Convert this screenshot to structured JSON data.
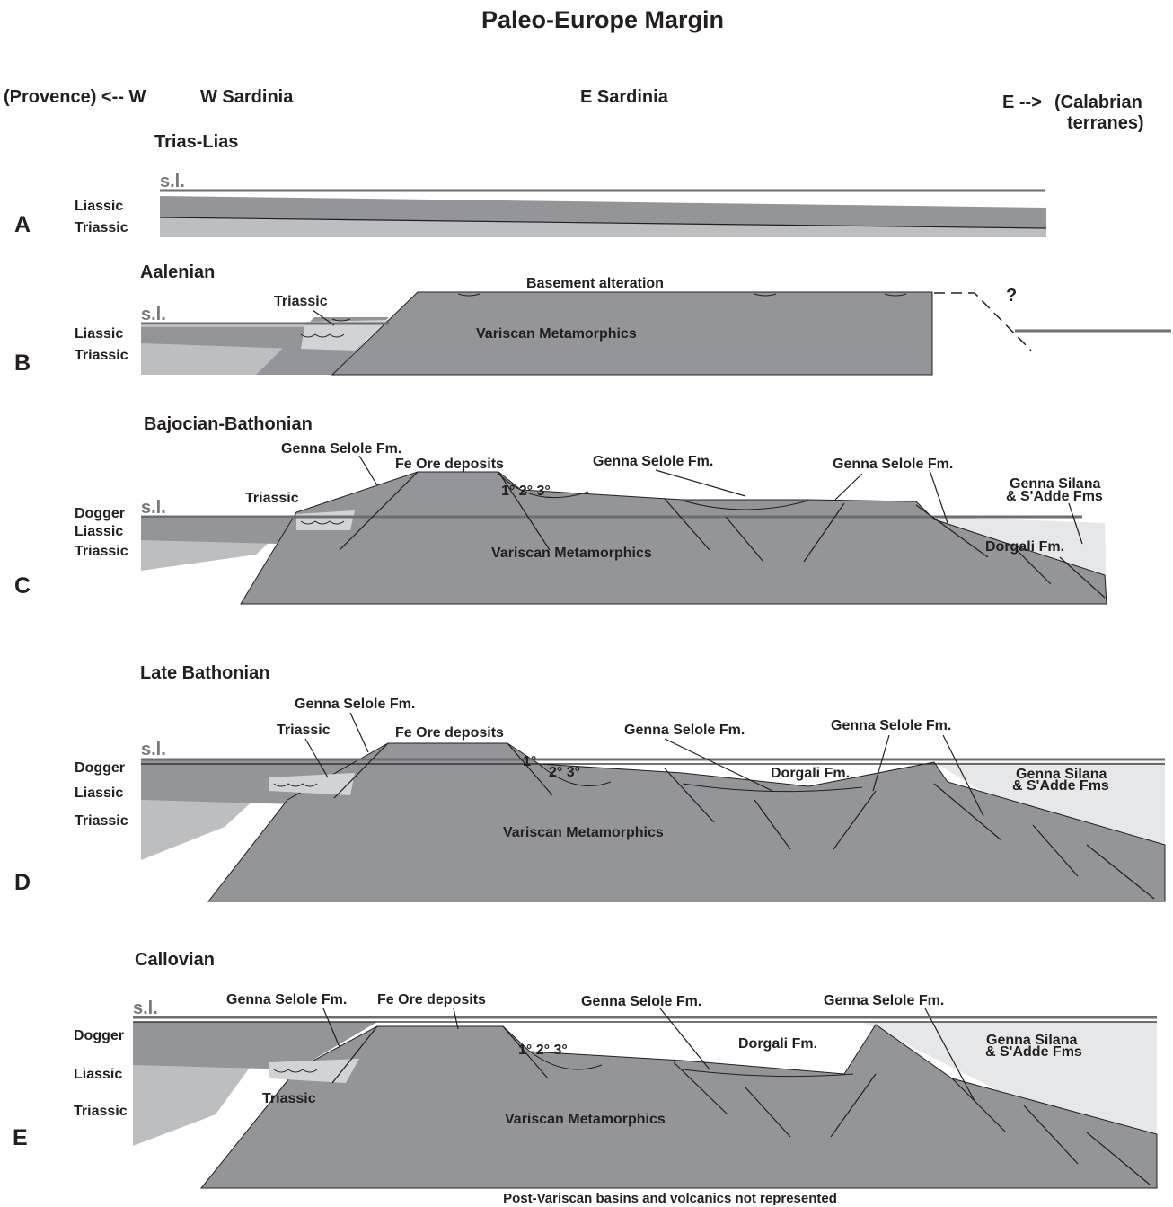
{
  "title": "Paleo-Europe Margin",
  "header": {
    "west": "(Provence) <-- W",
    "w_sardinia": "W Sardinia",
    "e_sardinia": "E Sardinia",
    "east": "E -->",
    "calabrian_1": "(Calabrian",
    "calabrian_2": "terranes)"
  },
  "panels": {
    "A": {
      "letter": "A",
      "stage": "Trias-Lias",
      "sl": "s.l.",
      "units": [
        "Liassic",
        "Triassic"
      ]
    },
    "B": {
      "letter": "B",
      "stage": "Aalenian",
      "sl": "s.l.",
      "units": [
        "Liassic",
        "Triassic"
      ],
      "triassic": "Triassic",
      "basement_alteration": "Basement  alteration",
      "variscan": "Variscan Metamorphics",
      "question": "?"
    },
    "C": {
      "letter": "C",
      "stage": "Bajocian-Bathonian",
      "sl": "s.l.",
      "units": [
        "Dogger",
        "Liassic",
        "Triassic"
      ],
      "genna_selole_1": "Genna Selole Fm.",
      "fe_ore": "Fe Ore deposits",
      "genna_selole_2": "Genna Selole Fm.",
      "genna_selole_3": "Genna Selole Fm.",
      "genna_silana_1": "Genna Silana",
      "genna_silana_2": "& S'Adde Fms",
      "triassic": "Triassic",
      "orders": "1° 2° 3°",
      "variscan": "Variscan Metamorphics",
      "dorgali": "Dorgali Fm."
    },
    "D": {
      "letter": "D",
      "stage": "Late Bathonian",
      "sl": "s.l.",
      "units": [
        "Dogger",
        "Liassic",
        "Triassic"
      ],
      "genna_selole_1": "Genna Selole Fm.",
      "triassic": "Triassic",
      "fe_ore": "Fe Ore deposits",
      "genna_selole_2": "Genna Selole Fm.",
      "genna_selole_3": "Genna Selole Fm.",
      "order_1": "1°",
      "order_23": "2° 3°",
      "dorgali": "Dorgali Fm.",
      "genna_silana_1": "Genna Silana",
      "genna_silana_2": "& S'Adde Fms",
      "variscan": "Variscan Metamorphics"
    },
    "E": {
      "letter": "E",
      "stage": "Callovian",
      "sl": "s.l.",
      "units": [
        "Dogger",
        "Liassic",
        "Triassic"
      ],
      "genna_selole_1": "Genna Selole Fm.",
      "fe_ore": "Fe Ore deposits",
      "genna_selole_2": "Genna Selole Fm.",
      "genna_selole_3": "Genna Selole Fm.",
      "orders": "1° 2° 3°",
      "dorgali": "Dorgali Fm.",
      "genna_silana_1": "Genna Silana",
      "genna_silana_2": "& S'Adde Fms",
      "triassic": "Triassic",
      "variscan": "Variscan Metamorphics"
    }
  },
  "footer": "Post-Variscan basins and volcanics not represented",
  "colors": {
    "basement": "#939598",
    "triassic_fill": "#bcbec0",
    "deep_basin": "#e6e7e8",
    "sea_level": "#6d6e71"
  }
}
